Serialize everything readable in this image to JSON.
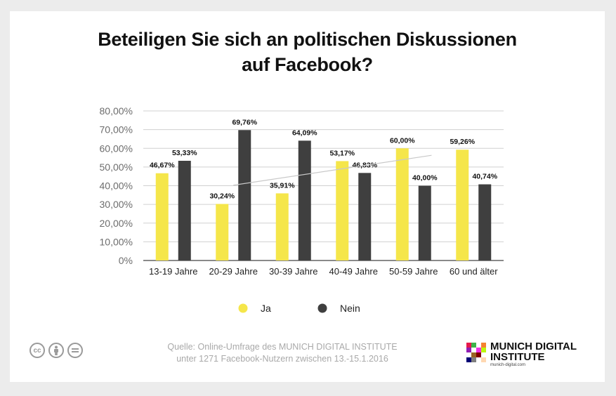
{
  "title": {
    "line1": "Beteiligen Sie sich an politischen Diskussionen",
    "line2": "auf Facebook?"
  },
  "chart_data": {
    "type": "bar",
    "categories": [
      "13-19 Jahre",
      "20-29 Jahre",
      "30-39 Jahre",
      "40-49 Jahre",
      "50-59 Jahre",
      "60 und älter"
    ],
    "series": [
      {
        "name": "Ja",
        "color": "#f5e64a",
        "values": [
          46.67,
          30.24,
          35.91,
          53.17,
          60.0,
          59.26
        ],
        "labels": [
          "46,67%",
          "30,24%",
          "35,91%",
          "53,17%",
          "60,00%",
          "59,26%"
        ]
      },
      {
        "name": "Nein",
        "color": "#3f3f3f",
        "values": [
          53.33,
          69.76,
          64.09,
          46.83,
          40.0,
          40.74
        ],
        "labels": [
          "53,33%",
          "69,76%",
          "64,09%",
          "46,83%",
          "40,00%",
          "40,74%"
        ]
      }
    ],
    "ylim": [
      0,
      80
    ],
    "yticks": [
      0,
      10,
      20,
      30,
      40,
      50,
      60,
      70,
      80
    ],
    "ytick_labels": [
      "0%",
      "10,00%",
      "20,00%",
      "30,00%",
      "40,00%",
      "50,00%",
      "60,00%",
      "70,00%",
      "80,00%"
    ],
    "trendline": {
      "series": "Ja",
      "color": "#c8c8c8"
    },
    "grid": true,
    "legend": "bottom-center"
  },
  "source": {
    "line1": "Quelle: Online-Umfrage des MUNICH DIGITAL INSTITUTE",
    "line2": "unter 1271 Facebook-Nutzern zwischen 13.-15.1.2016"
  },
  "license": {
    "icons": [
      "cc-icon",
      "by-icon",
      "nd-icon"
    ],
    "cc_text": "cc"
  },
  "logo": {
    "line1": "MUNICH DIGITAL",
    "line2": "INSTITUTE",
    "url": "munich-digital.com",
    "colors": [
      "#e6194b",
      "#3cb44b",
      "#4363d8",
      "#f58231",
      "#911eb4",
      "#46f0f0",
      "#f032e6",
      "#bcf60c",
      "#008080",
      "#9a6324",
      "#800000",
      "#808000",
      "#000075",
      "#808080",
      "#e6beff",
      "#ffd8b1"
    ]
  }
}
